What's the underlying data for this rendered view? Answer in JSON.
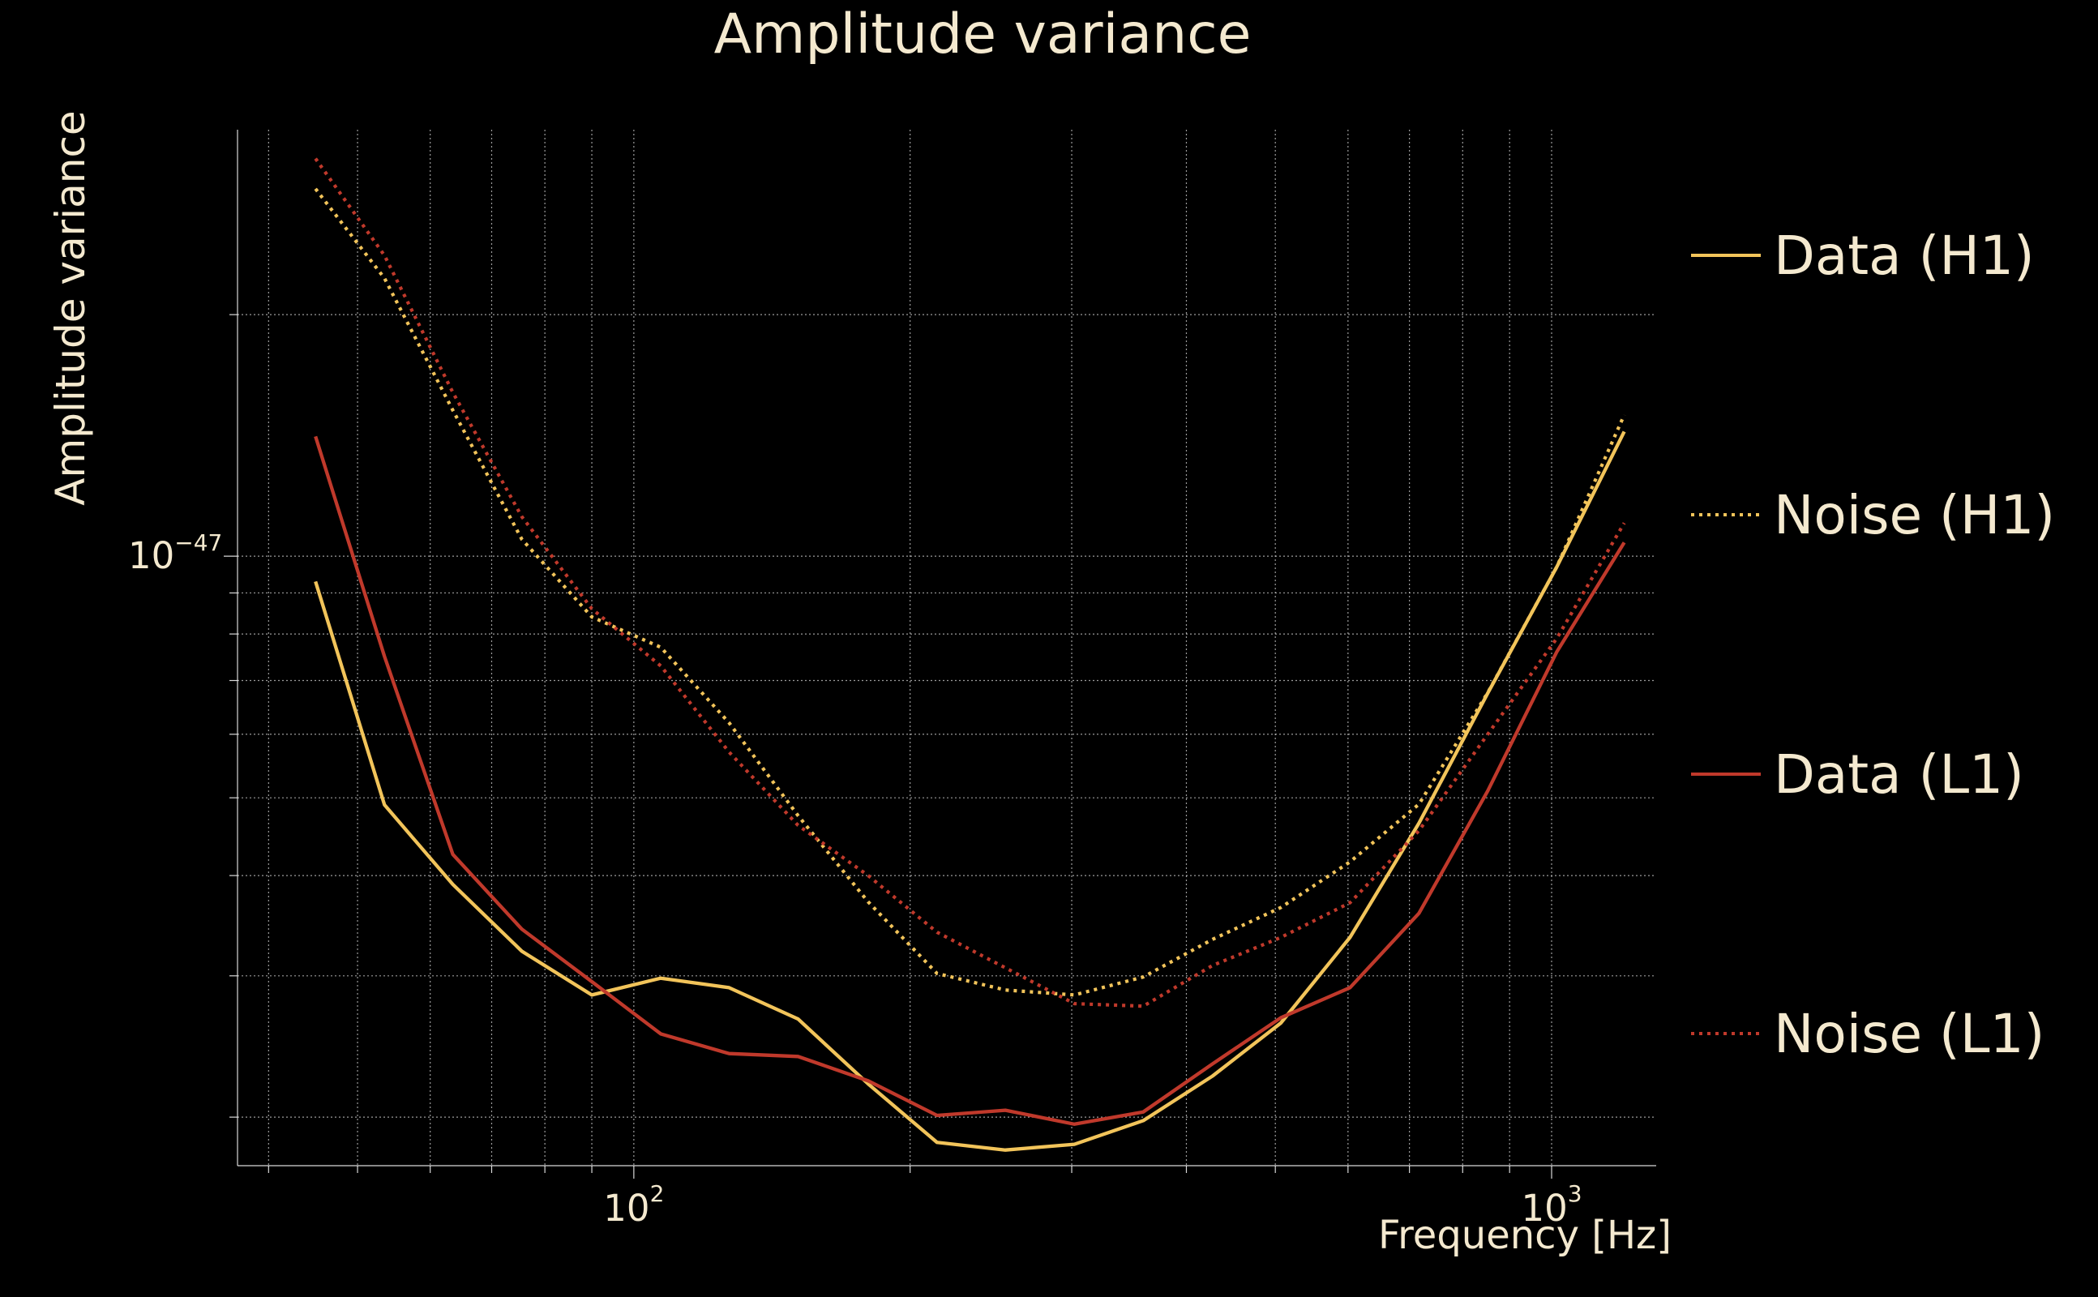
{
  "chart_data": {
    "type": "line",
    "title": "Amplitude variance",
    "xlabel": "Frequency [Hz]",
    "ylabel": "Amplitude variance",
    "xscale": "log",
    "yscale": "log",
    "xlim": [
      37,
      1300
    ],
    "ylim": [
      1.74e-48,
      3.4e-47
    ],
    "x_tick_labels": [
      {
        "value": 100,
        "base": "10",
        "exponent": "2"
      },
      {
        "value": 1000,
        "base": "10",
        "exponent": "3"
      }
    ],
    "y_tick_labels": [
      {
        "value": 1e-47,
        "base": "10",
        "exponent": "−47"
      }
    ],
    "grid": true,
    "legend": "right",
    "series": [
      {
        "name": "Data (H1)",
        "color": "#f2c45a",
        "line_style": "solid",
        "x": [
          45,
          53.5,
          63.5,
          75.5,
          90,
          107,
          127,
          151,
          180,
          214,
          254,
          302,
          359,
          427,
          507,
          603,
          717,
          852,
          1013,
          1200
        ],
        "y": [
          9.3e-48,
          4.9e-48,
          3.9e-48,
          3.22e-48,
          2.84e-48,
          2.98e-48,
          2.9e-48,
          2.65e-48,
          2.2e-48,
          1.86e-48,
          1.82e-48,
          1.85e-48,
          1.98e-48,
          2.25e-48,
          2.62e-48,
          3.35e-48,
          4.65e-48,
          6.75e-48,
          9.7e-48,
          1.43e-47
        ]
      },
      {
        "name": "Noise (H1)",
        "color": "#f2c45a",
        "line_style": "dotted",
        "x": [
          45,
          53.5,
          63.5,
          75.5,
          90,
          107,
          127,
          151,
          180,
          214,
          254,
          302,
          359,
          427,
          507,
          603,
          717,
          852,
          1013,
          1200
        ],
        "y": [
          2.87e-47,
          2.22e-47,
          1.52e-47,
          1.05e-47,
          8.4e-48,
          7.7e-48,
          6.2e-48,
          4.75e-48,
          3.71e-48,
          3.02e-48,
          2.88e-48,
          2.84e-48,
          2.99e-48,
          3.33e-48,
          3.65e-48,
          4.16e-48,
          4.91e-48,
          6.76e-48,
          9.7e-48,
          1.5e-47
        ]
      },
      {
        "name": "Data (L1)",
        "color": "#c0392b",
        "line_style": "solid",
        "x": [
          45,
          53.5,
          63.5,
          75.5,
          90,
          107,
          127,
          151,
          180,
          214,
          254,
          302,
          359,
          427,
          507,
          603,
          717,
          852,
          1013,
          1200
        ],
        "y": [
          1.41e-47,
          7.5e-48,
          4.25e-48,
          3.43e-48,
          2.95e-48,
          2.54e-48,
          2.4e-48,
          2.38e-48,
          2.22e-48,
          2.01e-48,
          2.04e-48,
          1.96e-48,
          2.03e-48,
          2.33e-48,
          2.66e-48,
          2.9e-48,
          3.59e-48,
          5.1e-48,
          7.6e-48,
          1.04e-47
        ]
      },
      {
        "name": "Noise (L1)",
        "color": "#c0392b",
        "line_style": "dotted",
        "x": [
          45,
          53.5,
          63.5,
          75.5,
          90,
          107,
          127,
          151,
          180,
          214,
          254,
          302,
          359,
          427,
          507,
          603,
          717,
          852,
          1013,
          1200
        ],
        "y": [
          3.13e-47,
          2.37e-47,
          1.6e-47,
          1.12e-47,
          8.6e-48,
          7.3e-48,
          5.7e-48,
          4.62e-48,
          4e-48,
          3.4e-48,
          3.07e-48,
          2.77e-48,
          2.75e-48,
          3.09e-48,
          3.35e-48,
          3.7e-48,
          4.55e-48,
          6e-48,
          7.9e-48,
          1.1e-47
        ]
      }
    ]
  }
}
